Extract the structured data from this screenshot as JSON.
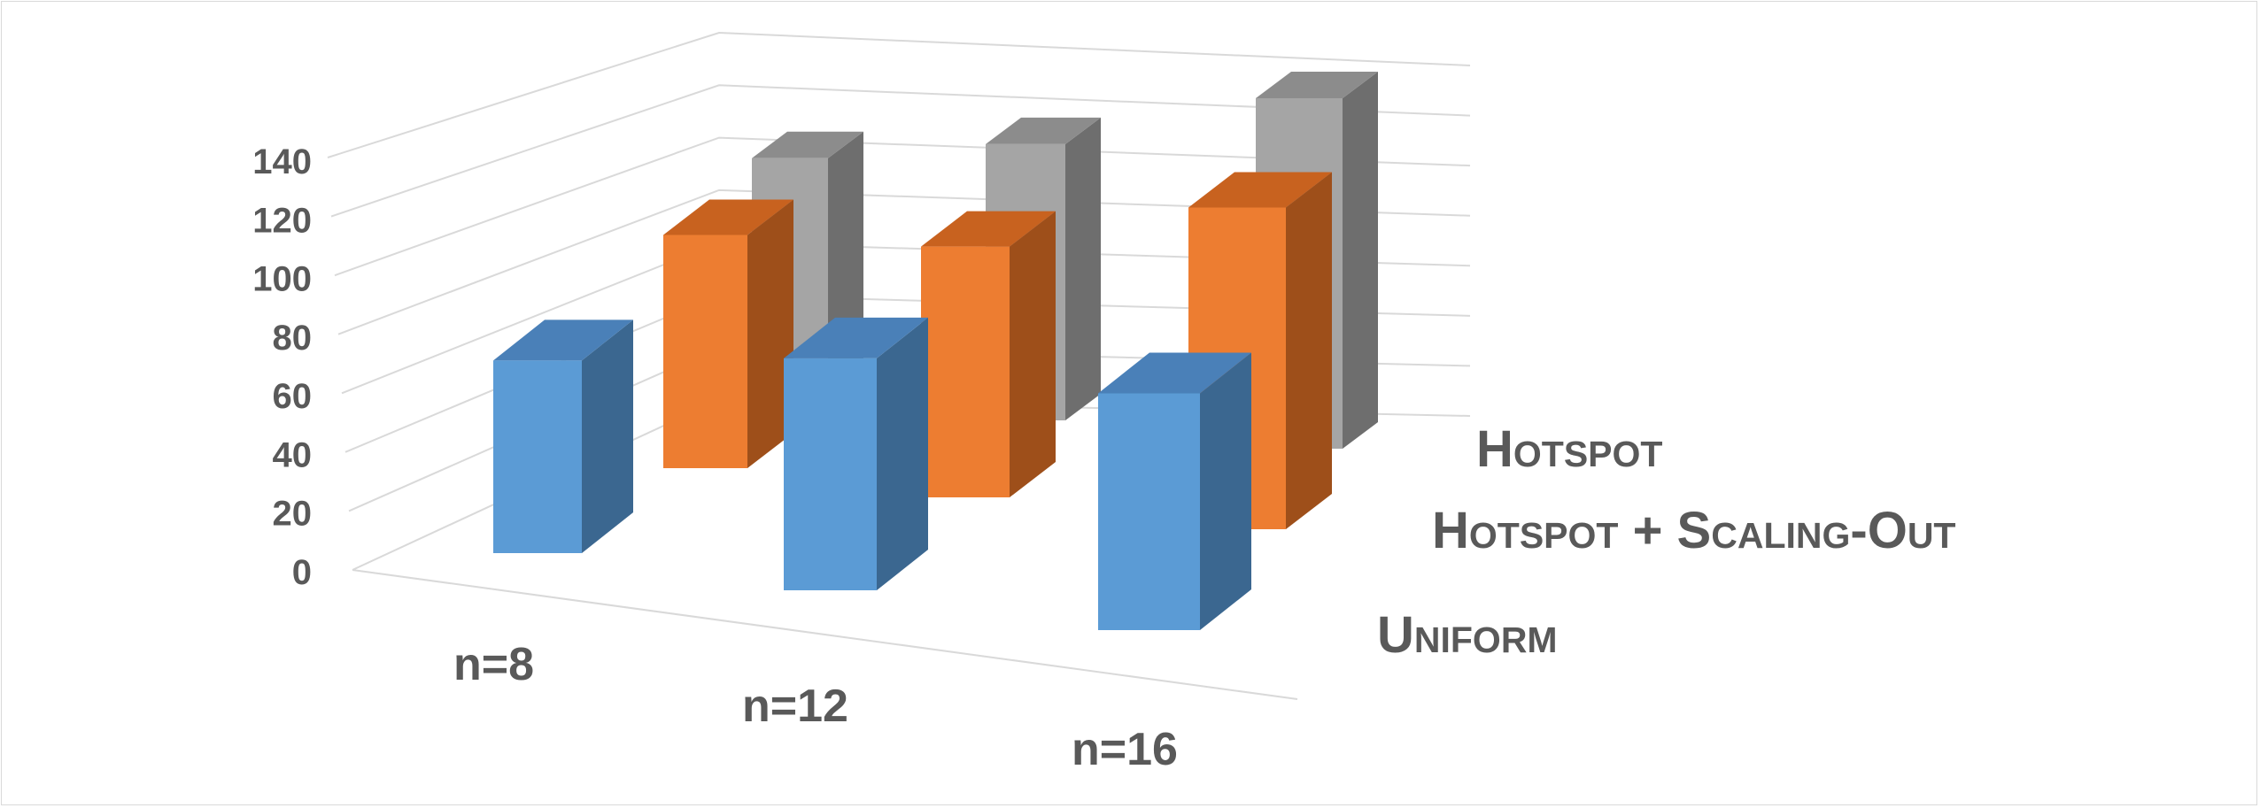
{
  "chart_data": {
    "type": "bar",
    "variant": "3d-column",
    "categories": [
      "n=8",
      "n=12",
      "n=16"
    ],
    "series": [
      {
        "name": "Uniform",
        "values": [
          80,
          96,
          98
        ],
        "color": "#5b9bd5",
        "side_color": "#3b6790",
        "top_color": "#4a80b8"
      },
      {
        "name": "Hotspot + Scaling-Out",
        "values": [
          85,
          92,
          118
        ],
        "color": "#ed7d31",
        "side_color": "#9e4f1a",
        "top_color": "#c8621f"
      },
      {
        "name": "Hotspot",
        "values": [
          80,
          94,
          120
        ],
        "color": "#a5a5a5",
        "side_color": "#6e6e6e",
        "top_color": "#8c8c8c"
      }
    ],
    "yticks": [
      "0",
      "20",
      "40",
      "60",
      "80",
      "100",
      "120",
      "140"
    ],
    "ylim": [
      0,
      140
    ],
    "grid": true,
    "legend": "depth-axis labels, right"
  }
}
